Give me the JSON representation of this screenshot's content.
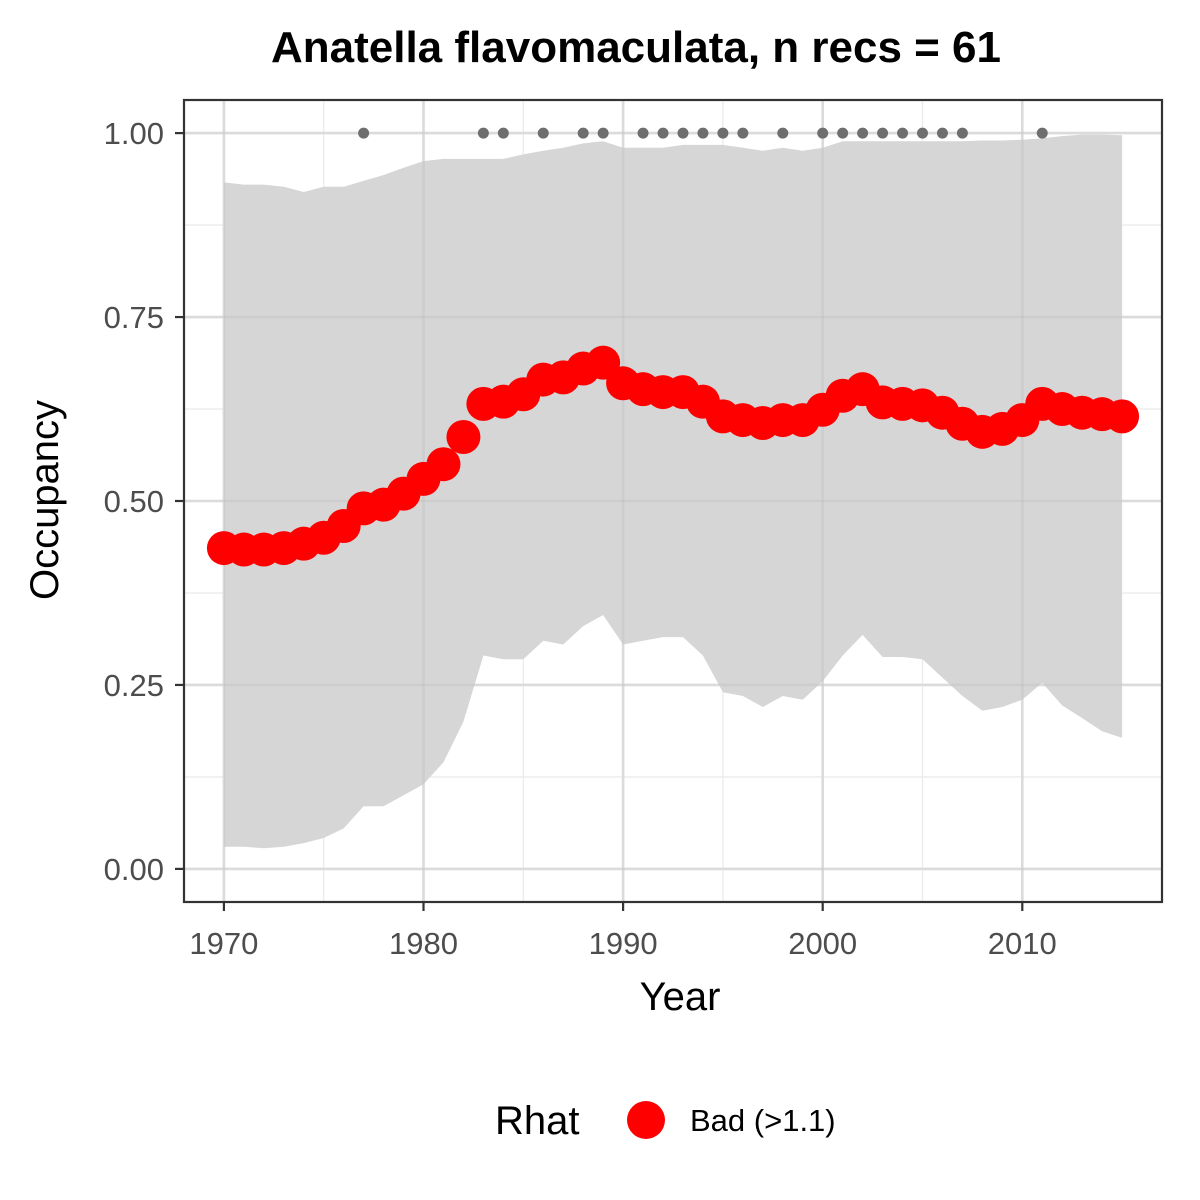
{
  "chart_data": {
    "type": "line",
    "title": "Anatella flavomaculata, n recs = 61",
    "xlabel": "Year",
    "ylabel": "Occupancy",
    "xlim": [
      1968,
      2017
    ],
    "ylim": [
      -0.045,
      1.045
    ],
    "x_ticks": [
      1970,
      1980,
      1990,
      2000,
      2010
    ],
    "x_tick_labels": [
      "1970",
      "1980",
      "1990",
      "2000",
      "2010"
    ],
    "y_ticks": [
      0,
      0.25,
      0.5,
      0.75,
      1
    ],
    "y_tick_labels": [
      "0.00",
      "0.25",
      "0.50",
      "0.75",
      "1.00"
    ],
    "grid": true,
    "legend": {
      "position": "bottom",
      "title": "Rhat",
      "entries": [
        {
          "label": "Bad (>1.1)",
          "color": "#ff0000"
        }
      ]
    },
    "colors": {
      "series": "#ff0000",
      "ribbon": "#d6d6d6",
      "record_points": "#6e6e6e",
      "grid": "#ebebeb",
      "panel_border": "#333333",
      "tick_label": "#4d4d4d"
    },
    "x": [
      1970,
      1971,
      1972,
      1973,
      1974,
      1975,
      1976,
      1977,
      1978,
      1979,
      1980,
      1981,
      1982,
      1983,
      1984,
      1985,
      1986,
      1987,
      1988,
      1989,
      1990,
      1991,
      1992,
      1993,
      1994,
      1995,
      1996,
      1997,
      1998,
      1999,
      2000,
      2001,
      2002,
      2003,
      2004,
      2005,
      2006,
      2007,
      2008,
      2009,
      2010,
      2011,
      2012,
      2013,
      2014,
      2015
    ],
    "series": [
      {
        "values": [
          0.436,
          0.434,
          0.434,
          0.436,
          0.442,
          0.45,
          0.466,
          0.49,
          0.495,
          0.51,
          0.53,
          0.55,
          0.587,
          0.632,
          0.635,
          0.645,
          0.665,
          0.668,
          0.68,
          0.688,
          0.66,
          0.652,
          0.648,
          0.648,
          0.635,
          0.615,
          0.61,
          0.606,
          0.61,
          0.61,
          0.624,
          0.643,
          0.652,
          0.634,
          0.632,
          0.63,
          0.62,
          0.605,
          0.594,
          0.598,
          0.61,
          0.632,
          0.625,
          0.62,
          0.618,
          0.615
        ],
        "lower": [
          0.03,
          0.03,
          0.028,
          0.03,
          0.035,
          0.042,
          0.055,
          0.085,
          0.085,
          0.1,
          0.115,
          0.145,
          0.2,
          0.29,
          0.285,
          0.285,
          0.31,
          0.305,
          0.33,
          0.345,
          0.305,
          0.31,
          0.315,
          0.315,
          0.29,
          0.24,
          0.235,
          0.22,
          0.235,
          0.23,
          0.255,
          0.29,
          0.318,
          0.288,
          0.288,
          0.285,
          0.26,
          0.235,
          0.215,
          0.22,
          0.23,
          0.253,
          0.222,
          0.205,
          0.187,
          0.178
        ],
        "upper": [
          0.933,
          0.93,
          0.93,
          0.927,
          0.92,
          0.927,
          0.927,
          0.935,
          0.943,
          0.953,
          0.962,
          0.965,
          0.965,
          0.965,
          0.965,
          0.971,
          0.976,
          0.98,
          0.986,
          0.989,
          0.98,
          0.98,
          0.98,
          0.984,
          0.984,
          0.984,
          0.98,
          0.976,
          0.98,
          0.976,
          0.98,
          0.989,
          0.989,
          0.989,
          0.989,
          0.989,
          0.989,
          0.989,
          0.99,
          0.99,
          0.991,
          0.993,
          0.996,
          0.998,
          0.998,
          0.997
        ]
      }
    ],
    "record_years": [
      1977,
      1983,
      1984,
      1986,
      1988,
      1989,
      1991,
      1992,
      1993,
      1994,
      1995,
      1996,
      1998,
      2000,
      2001,
      2002,
      2003,
      2004,
      2005,
      2006,
      2007,
      2011
    ],
    "record_value": 1.0
  }
}
